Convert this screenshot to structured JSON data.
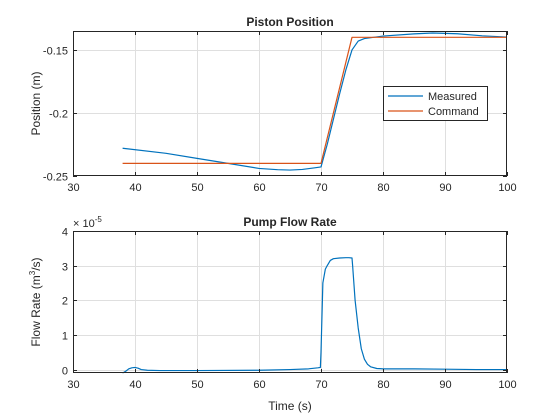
{
  "colors": {
    "measured": "#0072BD",
    "command": "#D95319",
    "grid": "#DFDFDF",
    "axis": "#262626"
  },
  "chart_data": [
    {
      "type": "line",
      "title": "Piston Position",
      "xlabel": "",
      "ylabel": "Position (m)",
      "xlim": [
        30,
        100
      ],
      "ylim": [
        -0.25,
        -0.135
      ],
      "xticks": [
        30,
        40,
        50,
        60,
        70,
        80,
        90,
        100
      ],
      "xtick_labels": [
        "30",
        "40",
        "50",
        "60",
        "70",
        "80",
        "90",
        "100"
      ],
      "yticks": [
        -0.25,
        -0.2,
        -0.15
      ],
      "ytick_labels": [
        "-0.25",
        "-0.2",
        "-0.15"
      ],
      "grid": true,
      "legend": {
        "placement": "right",
        "entries": [
          "Measured",
          "Command"
        ]
      },
      "series": [
        {
          "name": "Measured",
          "color_key": "measured",
          "x": [
            38,
            45,
            50,
            55,
            60,
            63,
            65,
            67,
            69,
            70,
            71,
            72,
            73,
            74,
            75,
            76,
            77,
            80,
            85,
            88,
            92,
            96,
            100
          ],
          "y": [
            -0.228,
            -0.232,
            -0.236,
            -0.24,
            -0.244,
            -0.245,
            -0.2453,
            -0.2448,
            -0.2435,
            -0.2428,
            -0.225,
            -0.205,
            -0.185,
            -0.166,
            -0.15,
            -0.143,
            -0.141,
            -0.139,
            -0.1373,
            -0.1366,
            -0.1372,
            -0.1388,
            -0.1398
          ]
        },
        {
          "name": "Command",
          "color_key": "command",
          "x": [
            38,
            70,
            75,
            100
          ],
          "y": [
            -0.24,
            -0.24,
            -0.14,
            -0.14
          ]
        }
      ]
    },
    {
      "type": "line",
      "title": "Pump Flow Rate",
      "xlabel": "Time (s)",
      "ylabel": "Flow Rate (m",
      "ylabel_sup": "3",
      "ylabel_tail": "/s)",
      "exponent_base": "× 10",
      "exponent_power": "-5",
      "xlim": [
        30,
        100
      ],
      "ylim": [
        -0.1,
        4
      ],
      "xticks": [
        30,
        40,
        50,
        60,
        70,
        80,
        90,
        100
      ],
      "xtick_labels": [
        "30",
        "40",
        "50",
        "60",
        "70",
        "80",
        "90",
        "100"
      ],
      "yticks": [
        0,
        1,
        2,
        3,
        4
      ],
      "ytick_labels": [
        "0",
        "1",
        "2",
        "3",
        "4"
      ],
      "grid": true,
      "series": [
        {
          "color_key": "measured",
          "x": [
            38,
            38.5,
            39,
            39.5,
            40,
            40.5,
            41,
            42,
            44,
            50,
            60,
            65,
            68,
            69.5,
            69.9,
            70,
            70.3,
            70.7,
            71,
            71.5,
            72,
            73,
            74,
            74.5,
            75,
            75.1,
            75.5,
            76,
            76.5,
            77,
            77.5,
            78,
            79,
            80,
            85,
            90,
            95,
            100
          ],
          "y": [
            -0.1,
            -0.05,
            0.02,
            0.05,
            0.06,
            0.04,
            0.0,
            -0.02,
            -0.03,
            -0.03,
            -0.02,
            0.0,
            0.02,
            0.05,
            0.06,
            0.5,
            2.5,
            2.9,
            3.0,
            3.15,
            3.2,
            3.22,
            3.23,
            3.23,
            3.22,
            3.0,
            2.0,
            1.2,
            0.6,
            0.3,
            0.15,
            0.08,
            0.03,
            0.02,
            0.02,
            0.01,
            0.0,
            0.0
          ]
        }
      ]
    }
  ]
}
